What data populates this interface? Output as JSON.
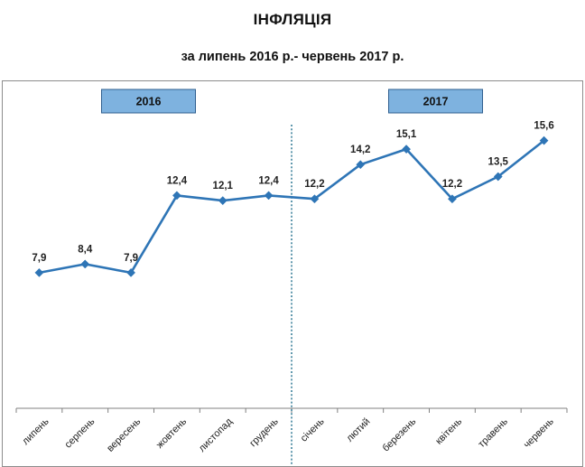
{
  "title": "ІНФЛЯЦІЯ",
  "subtitle": "за липень 2016 р.- червень 2017 р.",
  "colors": {
    "line": "#2e75b6",
    "marker": "#2e75b6",
    "divider": "#1f6e8c",
    "year_box_fill": "#7eb2df",
    "year_box_border": "#2f5f8f",
    "axis": "#808080"
  },
  "chart_data": {
    "type": "line",
    "title": "ІНФЛЯЦІЯ",
    "subtitle": "за липень 2016 р.- червень 2017 р.",
    "xlabel": "",
    "ylabel": "",
    "categories": [
      "липень",
      "серпень",
      "вересень",
      "жовтень",
      "листопад",
      "грудень",
      "січень",
      "лютий",
      "березень",
      "квітень",
      "травень",
      "червень"
    ],
    "series": [
      {
        "values": [
          7.9,
          8.4,
          7.9,
          12.4,
          12.1,
          12.4,
          12.2,
          14.2,
          15.1,
          12.2,
          13.5,
          15.6
        ],
        "labels": [
          "7,9",
          "8,4",
          "7,9",
          "12,4",
          "12,1",
          "12,4",
          "12,2",
          "14,2",
          "15,1",
          "12,2",
          "13,5",
          "15,6"
        ]
      }
    ],
    "grid": false,
    "legend": "none",
    "ylim": [
      0,
      16.2
    ],
    "year_groups": [
      {
        "label": "2016",
        "first_index": 0,
        "last_index": 5
      },
      {
        "label": "2017",
        "first_index": 6,
        "last_index": 11
      }
    ],
    "divider_between": [
      5,
      6
    ],
    "x_tick_rotation_deg": -45
  }
}
